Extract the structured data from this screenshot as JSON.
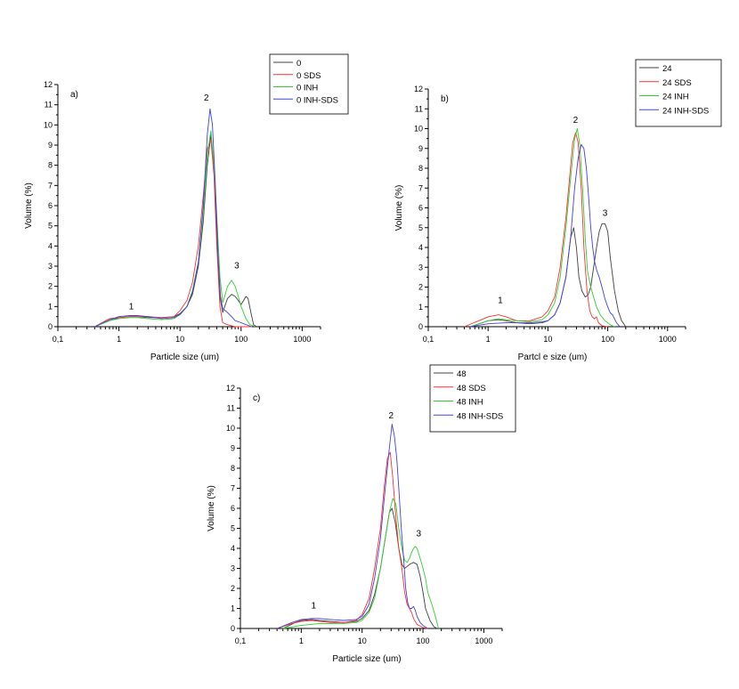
{
  "chart_data": [
    {
      "type": "line",
      "panel_label": "a)",
      "xlabel": "Particle size (um)",
      "ylabel": "Volume (%)",
      "xscale": "log",
      "xlim": [
        0.1,
        2000
      ],
      "ylim": [
        0,
        12
      ],
      "x_ticks": [
        "0,1",
        "1",
        "10",
        "100",
        "1000"
      ],
      "y_ticks": [
        "0",
        "1",
        "2",
        "3",
        "4",
        "5",
        "6",
        "7",
        "8",
        "9",
        "10",
        "11",
        "12"
      ],
      "legend_position": "top-right, outside",
      "peak_labels": [
        {
          "text": "1",
          "x": 1.6,
          "y": 0.85
        },
        {
          "text": "2",
          "x": 27,
          "y": 11.2
        },
        {
          "text": "3",
          "x": 85,
          "y": 2.9
        }
      ],
      "series": [
        {
          "name": "0",
          "color": "#404040",
          "x": [
            0.4,
            0.7,
            1,
            1.5,
            2,
            3,
            5,
            8,
            10,
            13,
            16,
            20,
            24,
            28,
            32,
            36,
            40,
            45,
            50,
            60,
            70,
            80,
            90,
            100,
            110,
            120,
            130,
            145,
            160,
            180
          ],
          "y": [
            0,
            0.3,
            0.45,
            0.5,
            0.5,
            0.45,
            0.45,
            0.5,
            0.65,
            1,
            1.6,
            3,
            5.2,
            8,
            9.5,
            8,
            4.5,
            1.5,
            0.7,
            1.4,
            1.6,
            1.5,
            1.3,
            1.1,
            1.3,
            1.5,
            1.4,
            0.7,
            0.1,
            0
          ]
        },
        {
          "name": "0 SDS",
          "color": "#ff3030",
          "x": [
            0.4,
            0.7,
            1,
            1.5,
            2,
            3,
            5,
            8,
            10,
            13,
            16,
            20,
            24,
            28,
            32,
            36,
            40,
            45,
            50,
            60,
            70,
            80,
            100,
            120,
            150
          ],
          "y": [
            0,
            0.4,
            0.45,
            0.5,
            0.5,
            0.5,
            0.45,
            0.5,
            0.8,
            1.3,
            2.2,
            4,
            6.5,
            8.8,
            9.3,
            7.5,
            4,
            1,
            0.2,
            0.1,
            0.05,
            0,
            0,
            0,
            0
          ]
        },
        {
          "name": "0 INH",
          "color": "#30d030",
          "x": [
            0.4,
            0.7,
            1,
            1.5,
            2,
            3,
            5,
            8,
            10,
            13,
            16,
            20,
            24,
            28,
            32,
            36,
            40,
            45,
            50,
            55,
            60,
            70,
            80,
            90,
            100,
            120,
            140,
            170
          ],
          "y": [
            0,
            0.3,
            0.4,
            0.45,
            0.45,
            0.4,
            0.35,
            0.4,
            0.6,
            1,
            1.8,
            3.2,
            5.5,
            8.5,
            9.7,
            8,
            5.5,
            2.5,
            1.2,
            1.6,
            2,
            2.3,
            2,
            1.5,
            1,
            0.4,
            0.1,
            0
          ]
        },
        {
          "name": "0 INH-SDS",
          "color": "#4040e0",
          "x": [
            0.4,
            0.7,
            1,
            1.5,
            2,
            3,
            5,
            8,
            10,
            13,
            16,
            20,
            24,
            28,
            31,
            34,
            38,
            42,
            46,
            50,
            55,
            60,
            70,
            80,
            100,
            120,
            150
          ],
          "y": [
            0,
            0.35,
            0.5,
            0.55,
            0.55,
            0.5,
            0.4,
            0.45,
            0.6,
            1,
            1.7,
            3.2,
            6,
            9.5,
            10.8,
            10,
            7,
            3.5,
            1.5,
            0.9,
            0.8,
            0.7,
            0.5,
            0.3,
            0.2,
            0.1,
            0
          ]
        }
      ]
    },
    {
      "type": "line",
      "panel_label": "b)",
      "xlabel": "Partcl e size (um)",
      "ylabel": "Volume (%)",
      "xscale": "log",
      "xlim": [
        0.1,
        2000
      ],
      "ylim": [
        0,
        12
      ],
      "x_ticks": [
        "0,1",
        "1",
        "10",
        "100",
        "1000"
      ],
      "y_ticks": [
        "0",
        "1",
        "2",
        "3",
        "4",
        "5",
        "6",
        "7",
        "8",
        "9",
        "10",
        "11",
        "12"
      ],
      "legend_position": "top-right, outside",
      "peak_labels": [
        {
          "text": "1",
          "x": 1.6,
          "y": 1.2
        },
        {
          "text": "2",
          "x": 29,
          "y": 10.3
        },
        {
          "text": "3",
          "x": 90,
          "y": 5.6
        }
      ],
      "series": [
        {
          "name": "24",
          "color": "#404040",
          "x": [
            0.5,
            0.8,
            1,
            1.5,
            2,
            3,
            5,
            8,
            10,
            13,
            16,
            20,
            24,
            27,
            30,
            33,
            37,
            42,
            47,
            52,
            58,
            65,
            72,
            80,
            90,
            100,
            110,
            130,
            150,
            170,
            200
          ],
          "y": [
            0,
            0.2,
            0.3,
            0.35,
            0.3,
            0.2,
            0.15,
            0.2,
            0.3,
            0.6,
            1.2,
            2.5,
            4.5,
            5,
            4,
            2.5,
            1.8,
            1.5,
            1.6,
            2,
            3,
            4,
            4.8,
            5.2,
            5.2,
            4.8,
            3.5,
            1.8,
            0.8,
            0.3,
            0
          ]
        },
        {
          "name": "24 SDS",
          "color": "#ff3030",
          "x": [
            0.4,
            0.7,
            1,
            1.5,
            2,
            3,
            5,
            8,
            10,
            13,
            16,
            20,
            23,
            26,
            29,
            32,
            36,
            40,
            45,
            50,
            55,
            60,
            65,
            70,
            80,
            100
          ],
          "y": [
            0,
            0.3,
            0.5,
            0.6,
            0.5,
            0.3,
            0.3,
            0.5,
            0.8,
            1.5,
            3,
            5.5,
            7.5,
            9.3,
            9.8,
            9.3,
            7,
            4,
            1.8,
            0.8,
            0.5,
            0.4,
            0.5,
            0.2,
            0.05,
            0
          ]
        },
        {
          "name": "24 INH",
          "color": "#30d030",
          "x": [
            0.5,
            1,
            1.5,
            2,
            3,
            5,
            8,
            10,
            13,
            16,
            20,
            24,
            28,
            31,
            34,
            38,
            42,
            46,
            52,
            58,
            65,
            75,
            90,
            110,
            130
          ],
          "y": [
            0,
            0.3,
            0.4,
            0.35,
            0.3,
            0.25,
            0.35,
            0.6,
            1.2,
            2.5,
            5,
            7.5,
            9.5,
            10,
            9.2,
            7,
            4.5,
            2.8,
            2,
            1.5,
            1,
            0.6,
            0.3,
            0.1,
            0
          ]
        },
        {
          "name": "24 INH-SDS",
          "color": "#4040e0",
          "x": [
            0.5,
            1,
            2,
            3,
            5,
            8,
            10,
            13,
            16,
            20,
            24,
            28,
            32,
            36,
            40,
            44,
            48,
            52,
            56,
            60,
            66,
            72,
            80,
            90,
            100,
            110,
            120,
            140,
            160
          ],
          "y": [
            0,
            0.15,
            0.2,
            0.2,
            0.2,
            0.25,
            0.3,
            0.6,
            1.2,
            2.5,
            4.5,
            7,
            8.5,
            9.2,
            9,
            8,
            6.5,
            5,
            4,
            3.3,
            2.8,
            2.5,
            2,
            1.4,
            1,
            0.7,
            0.6,
            0.2,
            0
          ]
        }
      ]
    },
    {
      "type": "line",
      "panel_label": "c)",
      "xlabel": "Particle size (um)",
      "ylabel": "Volume (%)",
      "xscale": "log",
      "xlim": [
        0.1,
        2000
      ],
      "ylim": [
        0,
        12
      ],
      "x_ticks": [
        "0,1",
        "1",
        "10",
        "100",
        "1000"
      ],
      "y_ticks": [
        "0",
        "1",
        "2",
        "3",
        "4",
        "5",
        "6",
        "7",
        "8",
        "9",
        "10",
        "11",
        "12"
      ],
      "legend_position": "top-right, outside",
      "peak_labels": [
        {
          "text": "1",
          "x": 1.6,
          "y": 1.0
        },
        {
          "text": "2",
          "x": 30,
          "y": 10.5
        },
        {
          "text": "3",
          "x": 85,
          "y": 4.6
        }
      ],
      "series": [
        {
          "name": "48",
          "color": "#404040",
          "x": [
            0.5,
            0.8,
            1,
            1.5,
            2,
            3,
            5,
            8,
            10,
            13,
            16,
            20,
            24,
            28,
            31,
            35,
            40,
            45,
            50,
            55,
            60,
            70,
            80,
            90,
            100,
            110,
            130,
            150,
            170
          ],
          "y": [
            0,
            0.3,
            0.4,
            0.45,
            0.4,
            0.35,
            0.3,
            0.35,
            0.5,
            0.9,
            1.7,
            3,
            4.5,
            5.8,
            6,
            5.3,
            4,
            3.2,
            3,
            3.1,
            3.2,
            3.3,
            3.2,
            2.6,
            1.8,
            1,
            0.4,
            0.1,
            0
          ]
        },
        {
          "name": "48 SDS",
          "color": "#ff3030",
          "x": [
            0.4,
            0.7,
            1,
            1.5,
            2,
            3,
            5,
            8,
            10,
            13,
            16,
            20,
            23,
            26,
            29,
            32,
            36,
            40,
            45,
            50,
            55,
            60,
            65,
            70,
            80,
            100,
            120
          ],
          "y": [
            0,
            0.25,
            0.35,
            0.4,
            0.35,
            0.3,
            0.3,
            0.4,
            0.7,
            1.5,
            3,
            5,
            7,
            8.5,
            8.8,
            7.5,
            5.5,
            4,
            3,
            1.8,
            1.2,
            1,
            0.8,
            0.5,
            0.2,
            0.05,
            0
          ]
        },
        {
          "name": "48 INH",
          "color": "#30d030",
          "x": [
            0.5,
            1,
            2,
            3,
            5,
            8,
            10,
            13,
            16,
            20,
            24,
            28,
            32,
            36,
            40,
            45,
            50,
            55,
            60,
            65,
            70,
            75,
            80,
            90,
            100,
            110,
            120,
            140,
            160,
            180
          ],
          "y": [
            0,
            0.15,
            0.25,
            0.25,
            0.25,
            0.3,
            0.4,
            0.8,
            1.5,
            3,
            4.5,
            5.8,
            6.5,
            6.2,
            5,
            4,
            3.4,
            3.3,
            3.5,
            3.8,
            4,
            4.1,
            4,
            3.5,
            3,
            2.5,
            1.8,
            1.2,
            0.6,
            0
          ]
        },
        {
          "name": "48 INH-SDS",
          "color": "#4040e0",
          "x": [
            0.4,
            0.7,
            1,
            1.5,
            2,
            3,
            5,
            8,
            10,
            13,
            16,
            20,
            24,
            28,
            31,
            34,
            37,
            40,
            44,
            48,
            52,
            56,
            60,
            65,
            70,
            75,
            80,
            90,
            100,
            120
          ],
          "y": [
            0,
            0.3,
            0.45,
            0.5,
            0.5,
            0.45,
            0.4,
            0.45,
            0.6,
            1.2,
            2.5,
            4.5,
            7,
            9,
            10.2,
            9.6,
            8.5,
            7,
            5,
            3.5,
            2,
            1.3,
            1,
            1,
            1.1,
            0.9,
            0.6,
            0.3,
            0.15,
            0
          ]
        }
      ]
    }
  ]
}
